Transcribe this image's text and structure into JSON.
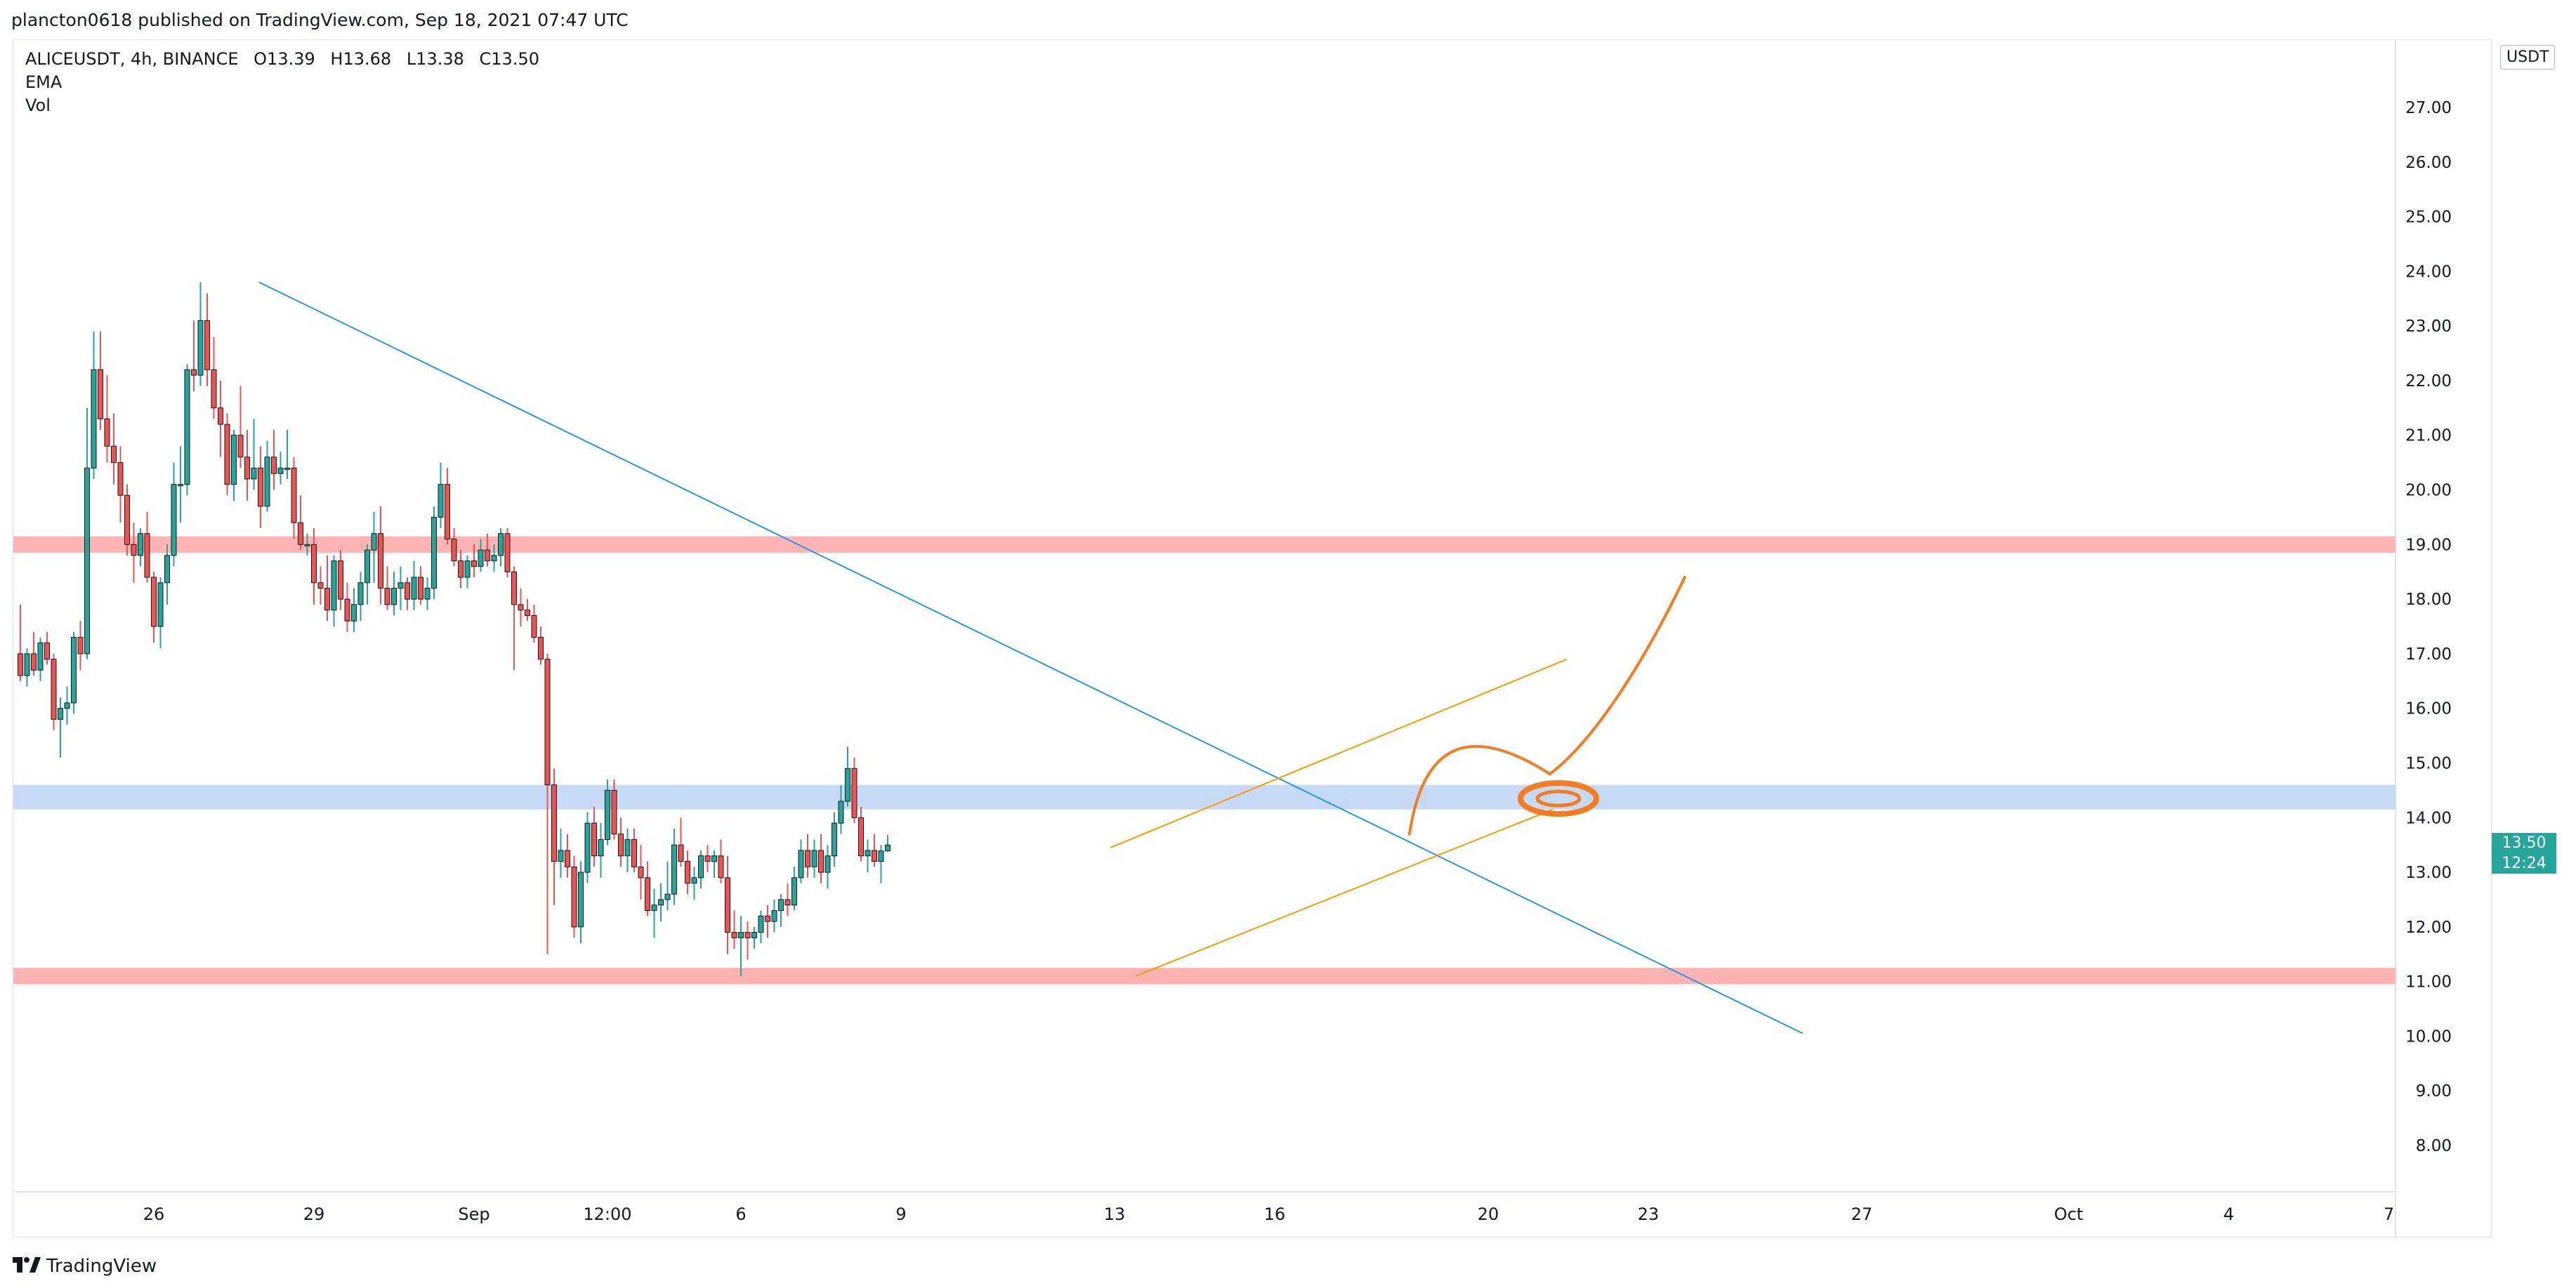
{
  "header": {
    "published_by": "plancton0618 published on TradingView.com, Sep 18, 2021 07:47 UTC"
  },
  "legend": {
    "symbol": "ALICEUSDT, 4h, BINANCE",
    "open": "O13.39",
    "high": "H13.68",
    "low": "L13.38",
    "close": "C13.50",
    "indicators": [
      "EMA",
      "Vol"
    ]
  },
  "price_axis": {
    "currency": "USDT",
    "current_price": "13.50",
    "countdown": "12:24"
  },
  "footer": {
    "brand": "TradingView"
  },
  "colors": {
    "up": "#26a69a",
    "down": "#ef5350",
    "wick_up": "#26a69a",
    "wick_down": "#ef5350",
    "trendline": "#2196f3",
    "channel": "#ff9800",
    "drawing": "#f57c1f",
    "resistance_zone": "#ffb3b3",
    "support_zone": "#c6d9f7"
  },
  "chart_data": {
    "type": "candlestick",
    "symbol": "ALICEUSDT",
    "interval": "4h",
    "exchange": "BINANCE",
    "ylim": [
      7.3,
      28.0
    ],
    "y_ticks": [
      "27.00",
      "26.00",
      "25.00",
      "24.00",
      "23.00",
      "22.00",
      "21.00",
      "20.00",
      "19.00",
      "18.00",
      "17.00",
      "16.00",
      "15.00",
      "14.00",
      "13.00",
      "12.00",
      "11.00",
      "10.00",
      "9.00",
      "8.00"
    ],
    "x_ticks": [
      {
        "label": "26",
        "bar": 20
      },
      {
        "label": "29",
        "bar": 44
      },
      {
        "label": "Sep",
        "bar": 68
      },
      {
        "label": "12:00",
        "bar": 88
      },
      {
        "label": "6",
        "bar": 108
      },
      {
        "label": "9",
        "bar": 132
      },
      {
        "label": "13",
        "bar": 164
      },
      {
        "label": "16",
        "bar": 188
      },
      {
        "label": "20",
        "bar": 220
      },
      {
        "label": "23",
        "bar": 244
      },
      {
        "label": "27",
        "bar": 276
      },
      {
        "label": "Oct",
        "bar": 307
      },
      {
        "label": "4",
        "bar": 331
      },
      {
        "label": "7",
        "bar": 355
      }
    ],
    "candles": [
      [
        17.0,
        17.9,
        16.5,
        16.6
      ],
      [
        16.6,
        17.1,
        16.4,
        17.0
      ],
      [
        17.0,
        17.4,
        16.6,
        16.7
      ],
      [
        16.7,
        17.3,
        16.5,
        17.2
      ],
      [
        17.2,
        17.4,
        16.8,
        16.9
      ],
      [
        16.9,
        17.0,
        15.6,
        15.8
      ],
      [
        15.8,
        16.2,
        15.1,
        16.0
      ],
      [
        16.0,
        16.4,
        15.7,
        16.1
      ],
      [
        16.1,
        17.4,
        15.9,
        17.3
      ],
      [
        17.3,
        17.6,
        16.7,
        17.0
      ],
      [
        17.0,
        21.5,
        16.9,
        20.4
      ],
      [
        20.4,
        22.9,
        20.2,
        22.2
      ],
      [
        22.2,
        22.9,
        21.1,
        21.3
      ],
      [
        21.3,
        22.1,
        20.5,
        20.8
      ],
      [
        20.8,
        21.4,
        20.1,
        20.5
      ],
      [
        20.5,
        20.8,
        19.4,
        19.9
      ],
      [
        19.9,
        20.1,
        18.8,
        19.0
      ],
      [
        19.0,
        19.4,
        18.3,
        18.8
      ],
      [
        18.8,
        19.3,
        18.6,
        19.2
      ],
      [
        19.2,
        19.6,
        18.3,
        18.4
      ],
      [
        18.4,
        18.5,
        17.2,
        17.5
      ],
      [
        17.5,
        18.4,
        17.1,
        18.3
      ],
      [
        18.3,
        19.0,
        17.9,
        18.8
      ],
      [
        18.8,
        20.5,
        18.6,
        20.1
      ],
      [
        20.1,
        20.8,
        19.4,
        20.1
      ],
      [
        20.1,
        22.3,
        19.9,
        22.2
      ],
      [
        22.2,
        23.1,
        21.8,
        22.1
      ],
      [
        22.1,
        23.8,
        21.9,
        23.1
      ],
      [
        23.1,
        23.6,
        21.9,
        22.2
      ],
      [
        22.2,
        22.8,
        21.3,
        21.5
      ],
      [
        21.5,
        22.0,
        20.6,
        21.2
      ],
      [
        21.2,
        21.4,
        19.9,
        20.1
      ],
      [
        20.1,
        21.1,
        19.8,
        21.0
      ],
      [
        21.0,
        21.9,
        20.4,
        20.6
      ],
      [
        20.6,
        21.1,
        19.8,
        20.2
      ],
      [
        20.2,
        21.3,
        20.0,
        20.4
      ],
      [
        20.4,
        20.8,
        19.3,
        19.7
      ],
      [
        19.7,
        20.9,
        19.6,
        20.6
      ],
      [
        20.6,
        21.1,
        20.0,
        20.3
      ],
      [
        20.3,
        20.7,
        20.1,
        20.4
      ],
      [
        20.4,
        21.1,
        20.2,
        20.4
      ],
      [
        20.4,
        20.6,
        19.1,
        19.4
      ],
      [
        19.4,
        19.9,
        18.9,
        19.0
      ],
      [
        19.0,
        19.2,
        18.8,
        19.0
      ],
      [
        19.0,
        19.3,
        17.9,
        18.3
      ],
      [
        18.3,
        18.6,
        17.9,
        18.2
      ],
      [
        18.2,
        18.8,
        17.6,
        17.8
      ],
      [
        17.8,
        18.8,
        17.5,
        18.7
      ],
      [
        18.7,
        18.9,
        17.8,
        18.0
      ],
      [
        18.0,
        18.3,
        17.4,
        17.6
      ],
      [
        17.6,
        18.2,
        17.4,
        17.9
      ],
      [
        17.9,
        18.5,
        17.6,
        18.3
      ],
      [
        18.3,
        19.0,
        17.9,
        18.9
      ],
      [
        18.9,
        19.6,
        18.3,
        19.2
      ],
      [
        19.2,
        19.7,
        17.9,
        18.2
      ],
      [
        18.2,
        18.6,
        17.8,
        17.9
      ],
      [
        17.9,
        18.5,
        17.7,
        18.2
      ],
      [
        18.2,
        18.6,
        17.8,
        18.3
      ],
      [
        18.3,
        18.4,
        17.8,
        18.0
      ],
      [
        18.0,
        18.7,
        17.8,
        18.4
      ],
      [
        18.4,
        18.6,
        17.9,
        18.0
      ],
      [
        18.0,
        18.4,
        17.8,
        18.2
      ],
      [
        18.2,
        19.7,
        18.0,
        19.5
      ],
      [
        19.5,
        20.5,
        19.3,
        20.1
      ],
      [
        20.1,
        20.4,
        19.0,
        19.1
      ],
      [
        19.1,
        19.3,
        18.6,
        18.7
      ],
      [
        18.7,
        18.9,
        18.2,
        18.4
      ],
      [
        18.4,
        18.8,
        18.2,
        18.7
      ],
      [
        18.7,
        19.0,
        18.4,
        18.6
      ],
      [
        18.6,
        19.1,
        18.5,
        18.9
      ],
      [
        18.9,
        19.2,
        18.6,
        18.7
      ],
      [
        18.7,
        19.0,
        18.5,
        18.8
      ],
      [
        18.8,
        19.3,
        18.6,
        19.2
      ],
      [
        19.2,
        19.3,
        18.4,
        18.5
      ],
      [
        18.5,
        18.6,
        16.7,
        17.9
      ],
      [
        17.9,
        18.2,
        17.5,
        17.8
      ],
      [
        17.8,
        18.0,
        17.6,
        17.7
      ],
      [
        17.7,
        17.9,
        17.2,
        17.3
      ],
      [
        17.3,
        17.5,
        16.8,
        16.9
      ],
      [
        16.9,
        17.0,
        11.5,
        14.6
      ],
      [
        14.6,
        14.9,
        12.4,
        13.2
      ],
      [
        13.2,
        13.8,
        12.9,
        13.4
      ],
      [
        13.4,
        13.7,
        12.9,
        13.1
      ],
      [
        13.1,
        13.3,
        11.8,
        12.0
      ],
      [
        12.0,
        13.2,
        11.7,
        13.0
      ],
      [
        13.0,
        14.1,
        12.8,
        13.9
      ],
      [
        13.9,
        14.2,
        13.1,
        13.3
      ],
      [
        13.3,
        13.9,
        12.9,
        13.6
      ],
      [
        13.6,
        14.7,
        13.5,
        14.5
      ],
      [
        14.5,
        14.7,
        13.6,
        13.7
      ],
      [
        13.7,
        14.0,
        13.1,
        13.3
      ],
      [
        13.3,
        13.8,
        13.0,
        13.6
      ],
      [
        13.6,
        13.8,
        13.0,
        13.1
      ],
      [
        13.1,
        13.5,
        12.5,
        12.9
      ],
      [
        12.9,
        13.2,
        12.2,
        12.3
      ],
      [
        12.3,
        12.7,
        11.8,
        12.4
      ],
      [
        12.4,
        12.8,
        12.1,
        12.5
      ],
      [
        12.5,
        13.2,
        12.3,
        12.6
      ],
      [
        12.6,
        13.8,
        12.4,
        13.5
      ],
      [
        13.5,
        14.0,
        13.1,
        13.2
      ],
      [
        13.2,
        13.4,
        12.6,
        12.8
      ],
      [
        12.8,
        13.1,
        12.5,
        12.9
      ],
      [
        12.9,
        13.4,
        12.7,
        13.3
      ],
      [
        13.3,
        13.5,
        13.0,
        13.2
      ],
      [
        13.2,
        13.4,
        12.9,
        13.3
      ],
      [
        13.3,
        13.6,
        12.8,
        12.9
      ],
      [
        12.9,
        13.3,
        11.5,
        11.9
      ],
      [
        11.9,
        12.3,
        11.6,
        11.8
      ],
      [
        11.8,
        12.2,
        11.1,
        11.9
      ],
      [
        11.9,
        12.1,
        11.4,
        11.8
      ],
      [
        11.8,
        12.0,
        11.6,
        11.9
      ],
      [
        11.9,
        12.3,
        11.7,
        12.2
      ],
      [
        12.2,
        12.4,
        11.8,
        12.1
      ],
      [
        12.1,
        12.5,
        11.9,
        12.3
      ],
      [
        12.3,
        12.6,
        12.0,
        12.5
      ],
      [
        12.5,
        12.8,
        12.2,
        12.4
      ],
      [
        12.4,
        13.1,
        12.3,
        12.9
      ],
      [
        12.9,
        13.6,
        12.8,
        13.4
      ],
      [
        13.4,
        13.7,
        12.9,
        13.1
      ],
      [
        13.1,
        13.6,
        12.9,
        13.4
      ],
      [
        13.4,
        13.7,
        12.8,
        13.0
      ],
      [
        13.0,
        13.5,
        12.7,
        13.3
      ],
      [
        13.3,
        14.1,
        13.1,
        13.9
      ],
      [
        13.9,
        14.6,
        13.7,
        14.3
      ],
      [
        14.3,
        15.3,
        14.2,
        14.9
      ],
      [
        14.9,
        15.1,
        13.9,
        14.0
      ],
      [
        14.0,
        14.2,
        13.2,
        13.3
      ],
      [
        13.3,
        13.6,
        13.0,
        13.4
      ],
      [
        13.4,
        13.7,
        13.1,
        13.2
      ],
      [
        13.2,
        13.5,
        12.8,
        13.39
      ],
      [
        13.39,
        13.68,
        13.38,
        13.5
      ]
    ]
  }
}
